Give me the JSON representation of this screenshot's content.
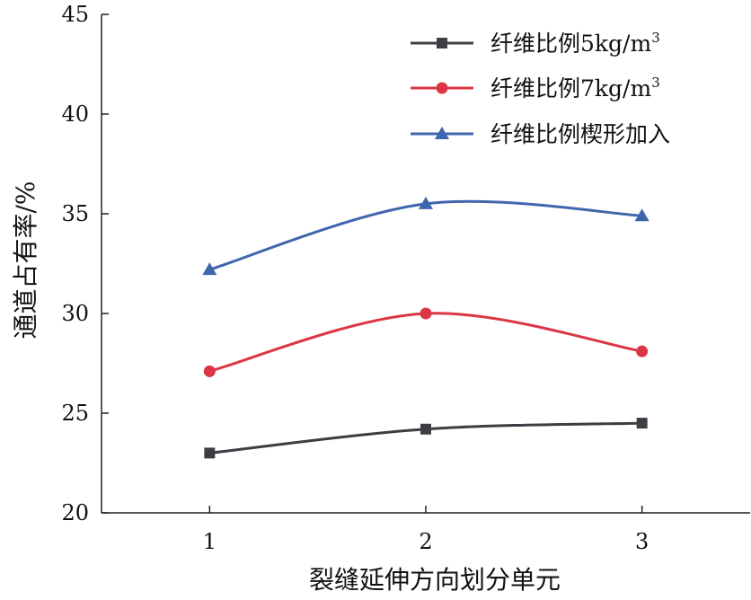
{
  "chart_data": {
    "type": "line",
    "title": "",
    "xlabel": "裂缝延伸方向划分单元",
    "ylabel": "通道占有率/%",
    "x": [
      1,
      2,
      3
    ],
    "x_tick_labels": [
      "1",
      "2",
      "3"
    ],
    "xlim": [
      0.5,
      3.5
    ],
    "ylim": [
      20,
      45
    ],
    "y_ticks": [
      20,
      25,
      30,
      35,
      40,
      45
    ],
    "y_tick_labels": [
      "20",
      "25",
      "30",
      "35",
      "40",
      "45"
    ],
    "grid": false,
    "smooth": true,
    "legend_position": "top-right",
    "series": [
      {
        "name": "纤维比例5kg/m³",
        "name_prefix": "纤维比例5kg/m",
        "name_sup": "3",
        "marker": "square",
        "color": "#3d3d45",
        "values": [
          23.0,
          24.2,
          24.5
        ]
      },
      {
        "name": "纤维比例7kg/m³",
        "name_prefix": "纤维比例7kg/m",
        "name_sup": "3",
        "marker": "circle",
        "color": "#dc3545",
        "values": [
          27.1,
          30.0,
          28.1
        ]
      },
      {
        "name": "纤维比例楔形加入",
        "name_prefix": "纤维比例楔形加入",
        "name_sup": "",
        "marker": "triangle",
        "color": "#3f66ad",
        "values": [
          32.2,
          35.5,
          34.9
        ]
      }
    ]
  }
}
